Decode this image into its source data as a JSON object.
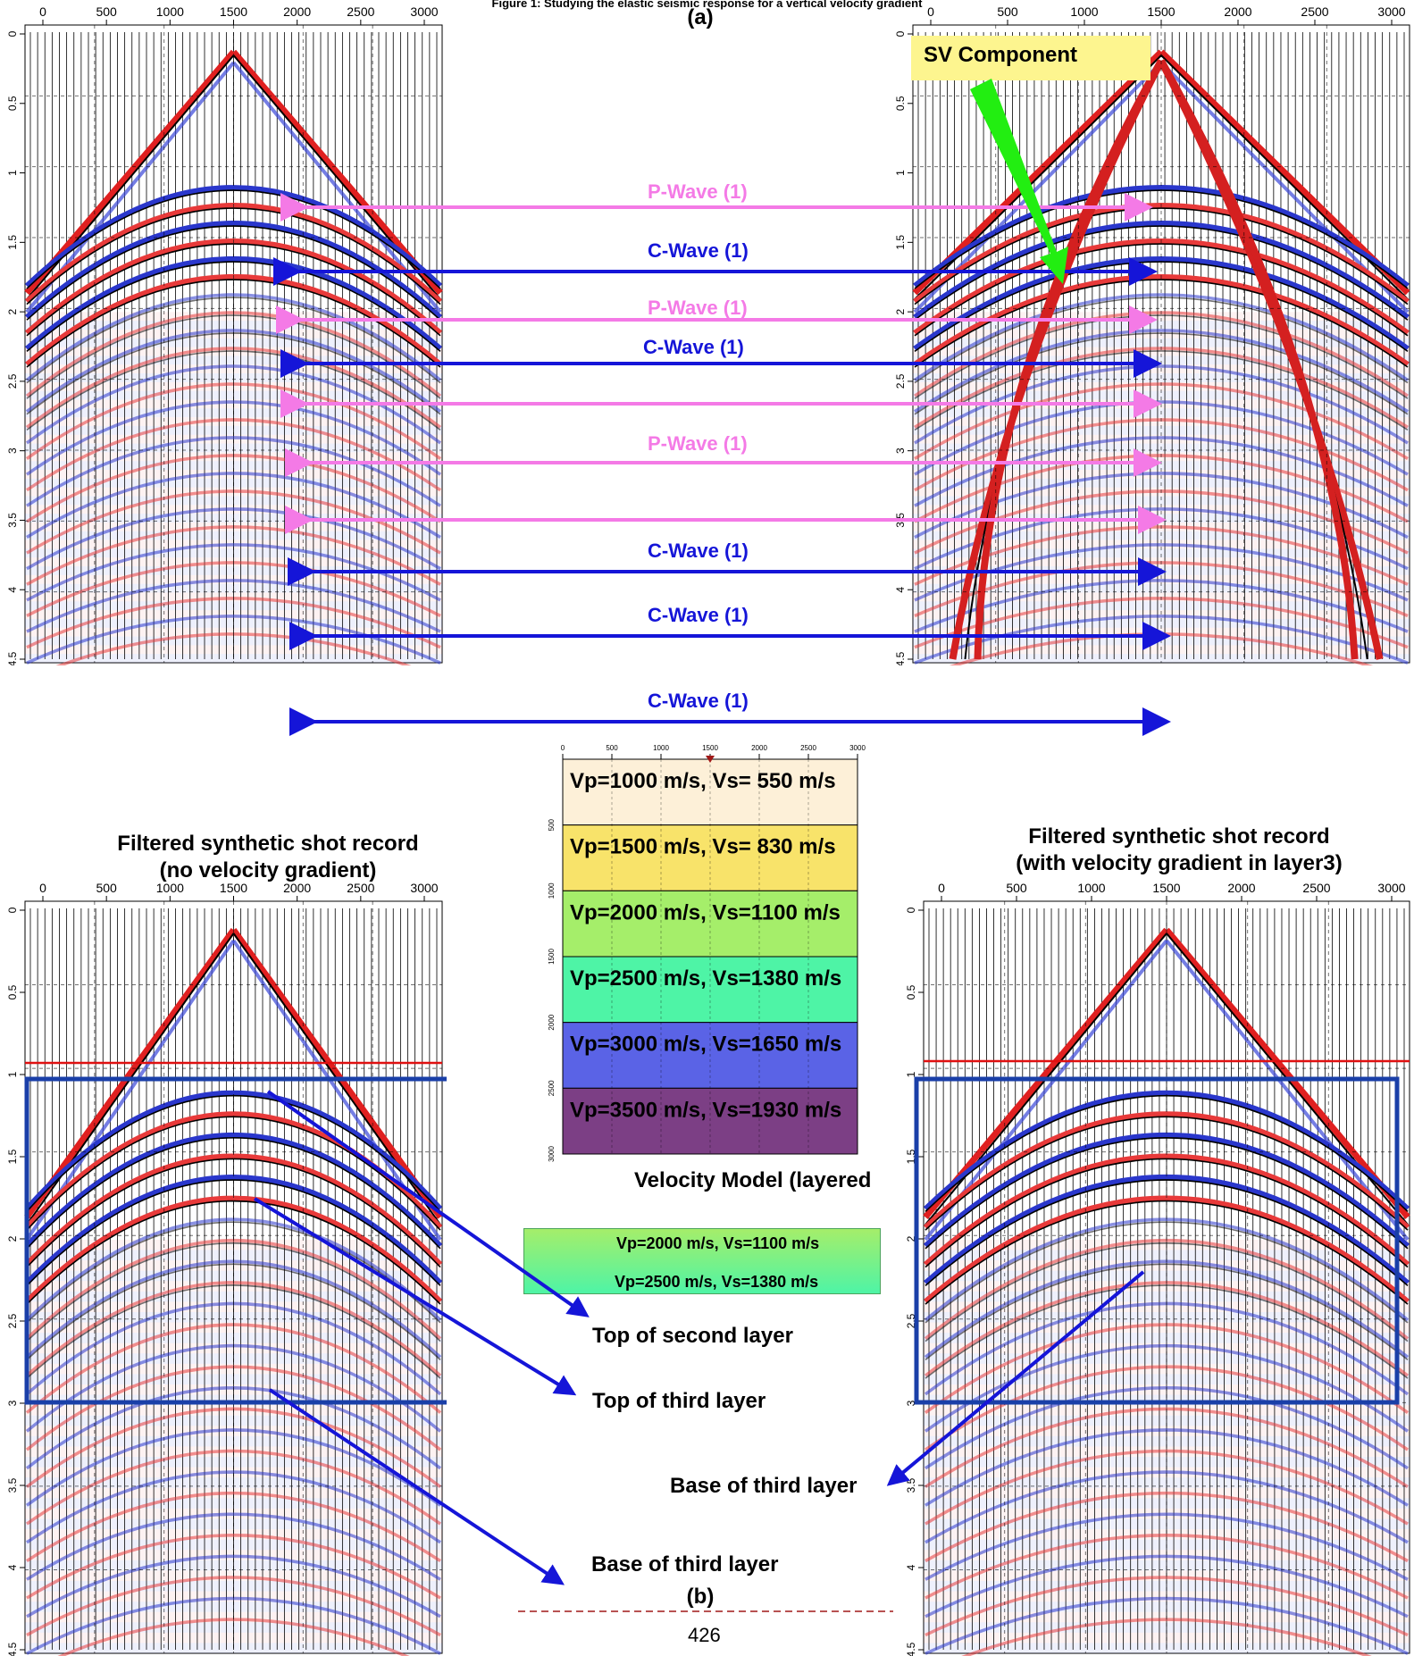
{
  "figure_title": "Figure 1: Studying the elastic seismic response for a vertical velocity gradient",
  "label_a": "(a)",
  "label_b": "(b)",
  "page_number": "426",
  "top_axis_ticks": [
    "0",
    "500",
    "1000",
    "1500",
    "2000",
    "2500",
    "3000"
  ],
  "time_axis_ticks": [
    "0",
    "0.5",
    "1",
    "1.5",
    "2",
    "2.5",
    "3",
    "3.5",
    "4",
    "4.5"
  ],
  "sv_component": "SV Component",
  "wave_labels": [
    {
      "text": "P-Wave (1)",
      "kind": "p"
    },
    {
      "text": "C-Wave (1)",
      "kind": "c"
    },
    {
      "text": "P-Wave (1)",
      "kind": "p"
    },
    {
      "text": "C-Wave (1)",
      "kind": "c"
    },
    {
      "text": "P-Wave (1)",
      "kind": "p"
    },
    {
      "text": "C-Wave (1)",
      "kind": "c"
    },
    {
      "text": "C-Wave (1)",
      "kind": "c"
    },
    {
      "text": "C-Wave (1)",
      "kind": "c"
    }
  ],
  "velocity_model": {
    "caption": "Velocity Model (layered",
    "ticks_x": [
      "0",
      "500",
      "1000",
      "1500",
      "2000",
      "2500",
      "3000"
    ],
    "ticks_y": [
      "500",
      "1000",
      "1500",
      "2000",
      "2500",
      "3000"
    ],
    "layers": [
      {
        "label": "Vp=1000 m/s, Vs= 550 m/s",
        "color": "#fdf0d8"
      },
      {
        "label": "Vp=1500 m/s, Vs= 830 m/s",
        "color": "#f8e36a"
      },
      {
        "label": "Vp=2000 m/s, Vs=1100 m/s",
        "color": "#a5ee6a"
      },
      {
        "label": "Vp=2500 m/s, Vs=1380 m/s",
        "color": "#4ef4a6"
      },
      {
        "label": "Vp=3000 m/s, Vs=1650 m/s",
        "color": "#5a63e6"
      },
      {
        "label": "Vp=3500 m/s, Vs=1930 m/s",
        "color": "#7c3f85"
      }
    ]
  },
  "gradient_strip": {
    "top_label": "Vp=2000 m/s, Vs=1100 m/s",
    "bottom_label": "Vp=2500 m/s, Vs=1380 m/s"
  },
  "panel_titles": {
    "bottom_left_line1": "Filtered synthetic shot record",
    "bottom_left_line2": "(no velocity gradient)",
    "bottom_right_line1": "Filtered synthetic shot record",
    "bottom_right_line2": "(with velocity gradient in layer3)"
  },
  "annotations": {
    "top_second_layer": "Top of second layer",
    "top_third_layer": "Top of third layer",
    "base_third_layer_left": "Base of third layer",
    "base_third_layer_right": "Base of third layer"
  },
  "colors": {
    "pink_arrow": "#f47ae6",
    "blue_arrow": "#1515d8",
    "green_arrow": "#22ee11",
    "box_blue": "#1a3fa8",
    "horizon_red": "#e01010"
  }
}
